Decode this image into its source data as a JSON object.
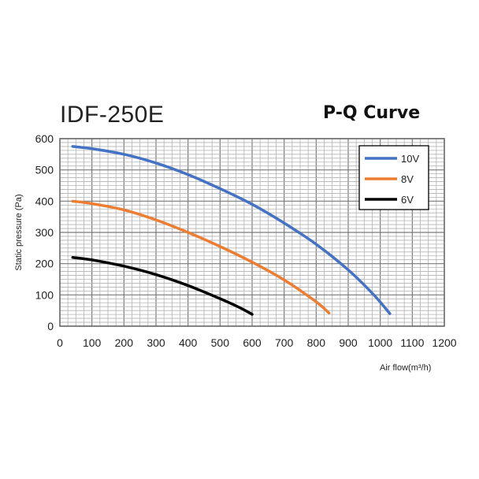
{
  "header": {
    "model": "IDF-250E",
    "chart_title": "P-Q Curve"
  },
  "chart_data": {
    "type": "line",
    "title": "P-Q Curve",
    "xlabel": "Air flow(m³/h)",
    "ylabel": "Static pressure (Pa)",
    "xlim": [
      0,
      1200
    ],
    "ylim": [
      0,
      600
    ],
    "xticks": [
      0,
      100,
      200,
      300,
      400,
      500,
      600,
      700,
      800,
      900,
      1000,
      1100,
      1200
    ],
    "yticks": [
      0,
      100,
      200,
      300,
      400,
      500,
      600
    ],
    "grid": true,
    "legend_position": "top-right",
    "series": [
      {
        "name": "10V",
        "color": "#4472C4",
        "points": [
          [
            40,
            575
          ],
          [
            100,
            568
          ],
          [
            200,
            550
          ],
          [
            300,
            522
          ],
          [
            400,
            485
          ],
          [
            500,
            440
          ],
          [
            600,
            390
          ],
          [
            700,
            330
          ],
          [
            800,
            262
          ],
          [
            900,
            180
          ],
          [
            980,
            100
          ],
          [
            1030,
            40
          ]
        ]
      },
      {
        "name": "8V",
        "color": "#ED7D31",
        "points": [
          [
            40,
            400
          ],
          [
            100,
            392
          ],
          [
            200,
            372
          ],
          [
            300,
            340
          ],
          [
            400,
            300
          ],
          [
            500,
            255
          ],
          [
            600,
            205
          ],
          [
            700,
            148
          ],
          [
            800,
            78
          ],
          [
            840,
            42
          ]
        ]
      },
      {
        "name": "6V",
        "color": "#000000",
        "points": [
          [
            40,
            220
          ],
          [
            100,
            212
          ],
          [
            200,
            192
          ],
          [
            300,
            165
          ],
          [
            400,
            130
          ],
          [
            500,
            88
          ],
          [
            560,
            60
          ],
          [
            600,
            38
          ]
        ]
      }
    ]
  }
}
